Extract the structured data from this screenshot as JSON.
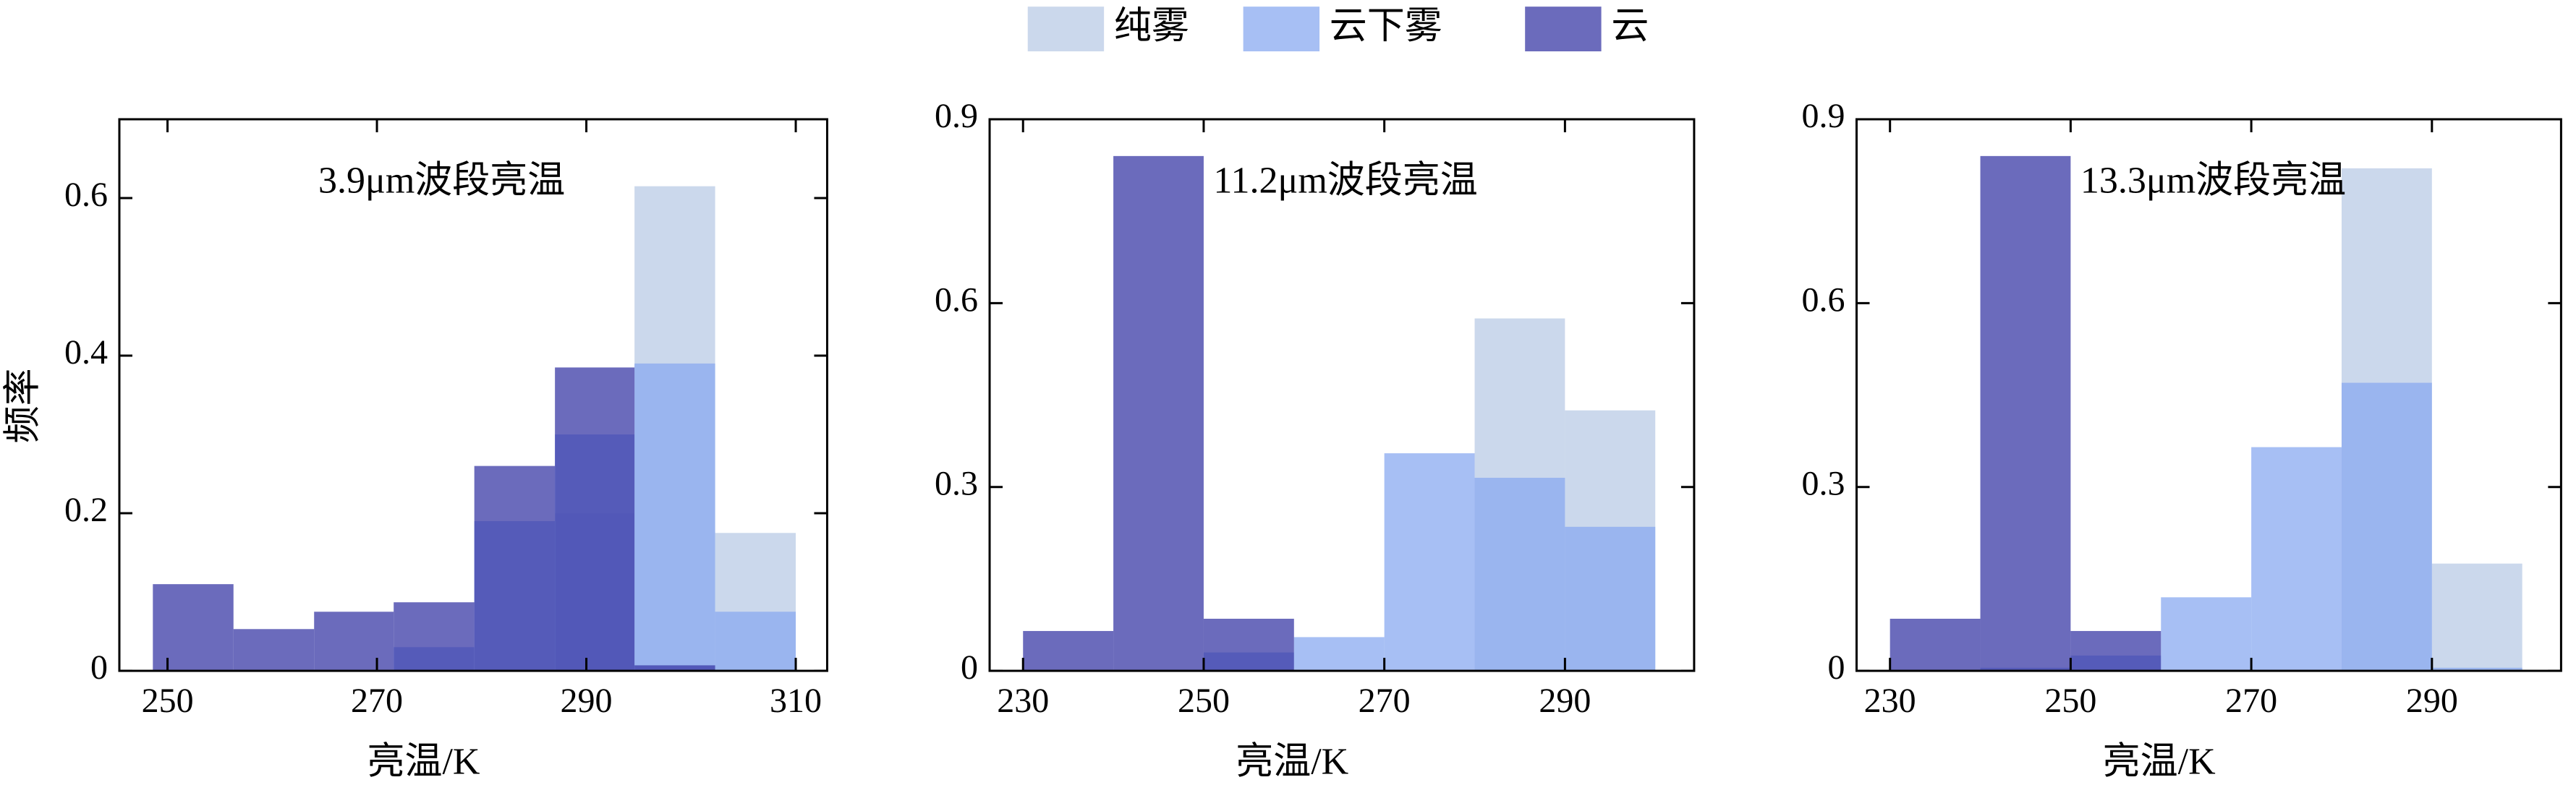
{
  "chart_data": [
    {
      "type": "histogram",
      "annotation": "3.9μm波段亮温",
      "xlabel": "亮温/K",
      "ylabel": "频率",
      "bins": [
        248.6,
        256.3,
        264,
        271.6,
        279.3,
        287,
        294.6,
        302.3,
        310
      ],
      "series": [
        {
          "name": "纯雾",
          "color": "#b9cbe6",
          "values": [
            0,
            0,
            0,
            0,
            0,
            0.2,
            0.615,
            0.175
          ]
        },
        {
          "name": "云下雾",
          "color": "#8aaaf0",
          "values": [
            0,
            0,
            0,
            0.03,
            0.19,
            0.3,
            0.39,
            0.075
          ]
        },
        {
          "name": "云",
          "color": "#3a3aa6",
          "values": [
            0.11,
            0.053,
            0.075,
            0.087,
            0.26,
            0.385,
            0.007,
            0
          ]
        }
      ],
      "alpha": 0.75,
      "xlim": [
        245.4,
        313
      ],
      "xticks": [
        250,
        270,
        290,
        310
      ],
      "ylim": [
        0,
        0.7
      ],
      "yticks": [
        0,
        0.2,
        0.4,
        0.6
      ]
    },
    {
      "type": "histogram",
      "annotation": "11.2μm波段亮温",
      "xlabel": "亮温/K",
      "bins": [
        230,
        240,
        250,
        260,
        270,
        280,
        290,
        300
      ],
      "series": [
        {
          "name": "纯雾",
          "color": "#b9cbe6",
          "values": [
            0,
            0,
            0,
            0,
            0,
            0.575,
            0.425
          ]
        },
        {
          "name": "云下雾",
          "color": "#8aaaf0",
          "values": [
            0,
            0,
            0.03,
            0.055,
            0.355,
            0.315,
            0.235
          ]
        },
        {
          "name": "云",
          "color": "#3a3aa6",
          "values": [
            0.065,
            0.84,
            0.085,
            0,
            0,
            0,
            0
          ]
        }
      ],
      "alpha": 0.75,
      "xlim": [
        226.3,
        304.3
      ],
      "xticks": [
        230,
        250,
        270,
        290
      ],
      "ylim": [
        0,
        0.9
      ],
      "yticks": [
        0,
        0.3,
        0.6,
        0.9
      ]
    },
    {
      "type": "histogram",
      "annotation": "13.3μm波段亮温",
      "xlabel": "亮温/K",
      "bins": [
        230,
        240,
        250,
        260,
        270,
        280,
        290,
        300
      ],
      "series": [
        {
          "name": "纯雾",
          "color": "#b9cbe6",
          "values": [
            0,
            0,
            0,
            0,
            0,
            0.82,
            0.175
          ]
        },
        {
          "name": "云下雾",
          "color": "#8aaaf0",
          "values": [
            0,
            0.005,
            0.025,
            0.12,
            0.365,
            0.47,
            0.005
          ]
        },
        {
          "name": "云",
          "color": "#3a3aa6",
          "values": [
            0.085,
            0.84,
            0.065,
            0,
            0,
            0,
            0
          ]
        }
      ],
      "alpha": 0.75,
      "xlim": [
        226.3,
        304.3
      ],
      "xticks": [
        230,
        250,
        270,
        290
      ],
      "ylim": [
        0,
        0.9
      ],
      "yticks": [
        0,
        0.3,
        0.6,
        0.9
      ]
    }
  ]
}
